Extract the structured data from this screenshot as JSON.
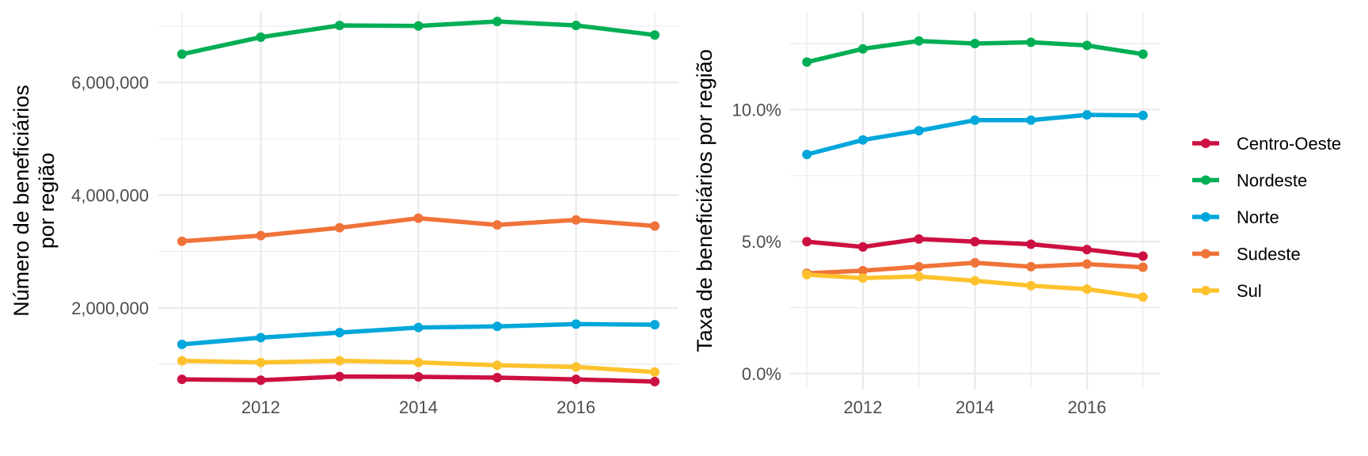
{
  "chart_data": [
    {
      "type": "line",
      "ylabel": [
        "Número de beneficiários",
        "por região"
      ],
      "x": [
        2011,
        2012,
        2013,
        2014,
        2015,
        2016,
        2017
      ],
      "xticks": [
        2012,
        2014,
        2016
      ],
      "xtick_labels": [
        "2012",
        "2014",
        "2016"
      ],
      "xlim": [
        2010.7,
        2017.3
      ],
      "ylim": [
        550000,
        7250000
      ],
      "yticks": [
        2000000,
        4000000,
        6000000
      ],
      "ytick_labels": [
        "2,000,000",
        "4,000,000",
        "6,000,000"
      ],
      "yminor": [
        1000000,
        3000000,
        5000000,
        7000000
      ],
      "grid": true,
      "series": [
        {
          "name": "Centro-Oeste",
          "color": "#CC1041",
          "values": [
            730000,
            715000,
            780000,
            775000,
            760000,
            730000,
            690000
          ]
        },
        {
          "name": "Nordeste",
          "color": "#00AE55",
          "values": [
            6500000,
            6800000,
            7010000,
            7000000,
            7080000,
            7010000,
            6840000
          ]
        },
        {
          "name": "Norte",
          "color": "#00A7DA",
          "values": [
            1350000,
            1470000,
            1560000,
            1650000,
            1670000,
            1710000,
            1700000
          ]
        },
        {
          "name": "Sudeste",
          "color": "#F07339",
          "values": [
            3180000,
            3280000,
            3420000,
            3590000,
            3470000,
            3560000,
            3450000
          ]
        },
        {
          "name": "Sul",
          "color": "#FDC22D",
          "values": [
            1060000,
            1030000,
            1060000,
            1030000,
            980000,
            950000,
            860000
          ]
        }
      ]
    },
    {
      "type": "line",
      "ylabel": [
        "Taxa de beneficiários por região"
      ],
      "x": [
        2011,
        2012,
        2013,
        2014,
        2015,
        2016,
        2017
      ],
      "xticks": [
        2012,
        2014,
        2016
      ],
      "xtick_labels": [
        "2012",
        "2014",
        "2016"
      ],
      "xlim": [
        2010.7,
        2017.3
      ],
      "ylim": [
        -0.006,
        0.137
      ],
      "yticks": [
        0.0,
        0.05,
        0.1
      ],
      "ytick_labels": [
        "0.0%",
        "5.0%",
        "10.0%"
      ],
      "yminor": [
        0.025,
        0.075,
        0.125
      ],
      "grid": true,
      "series": [
        {
          "name": "Centro-Oeste",
          "color": "#CC1041",
          "values": [
            0.05,
            0.048,
            0.051,
            0.05,
            0.049,
            0.047,
            0.0445
          ]
        },
        {
          "name": "Nordeste",
          "color": "#00AE55",
          "values": [
            0.118,
            0.123,
            0.126,
            0.125,
            0.1255,
            0.1243,
            0.121
          ]
        },
        {
          "name": "Norte",
          "color": "#00A7DA",
          "values": [
            0.083,
            0.0885,
            0.092,
            0.096,
            0.096,
            0.098,
            0.0978
          ]
        },
        {
          "name": "Sudeste",
          "color": "#F07339",
          "values": [
            0.038,
            0.039,
            0.0405,
            0.042,
            0.0405,
            0.0415,
            0.0403
          ]
        },
        {
          "name": "Sul",
          "color": "#FDC22D",
          "values": [
            0.0375,
            0.0362,
            0.0368,
            0.0352,
            0.0333,
            0.032,
            0.029
          ]
        }
      ]
    }
  ],
  "legend": {
    "position": "right",
    "items": [
      {
        "label": "Centro-Oeste",
        "color": "#CC1041"
      },
      {
        "label": "Nordeste",
        "color": "#00AE55"
      },
      {
        "label": "Norte",
        "color": "#00A7DA"
      },
      {
        "label": "Sudeste",
        "color": "#F07339"
      },
      {
        "label": "Sul",
        "color": "#FDC22D"
      }
    ]
  }
}
